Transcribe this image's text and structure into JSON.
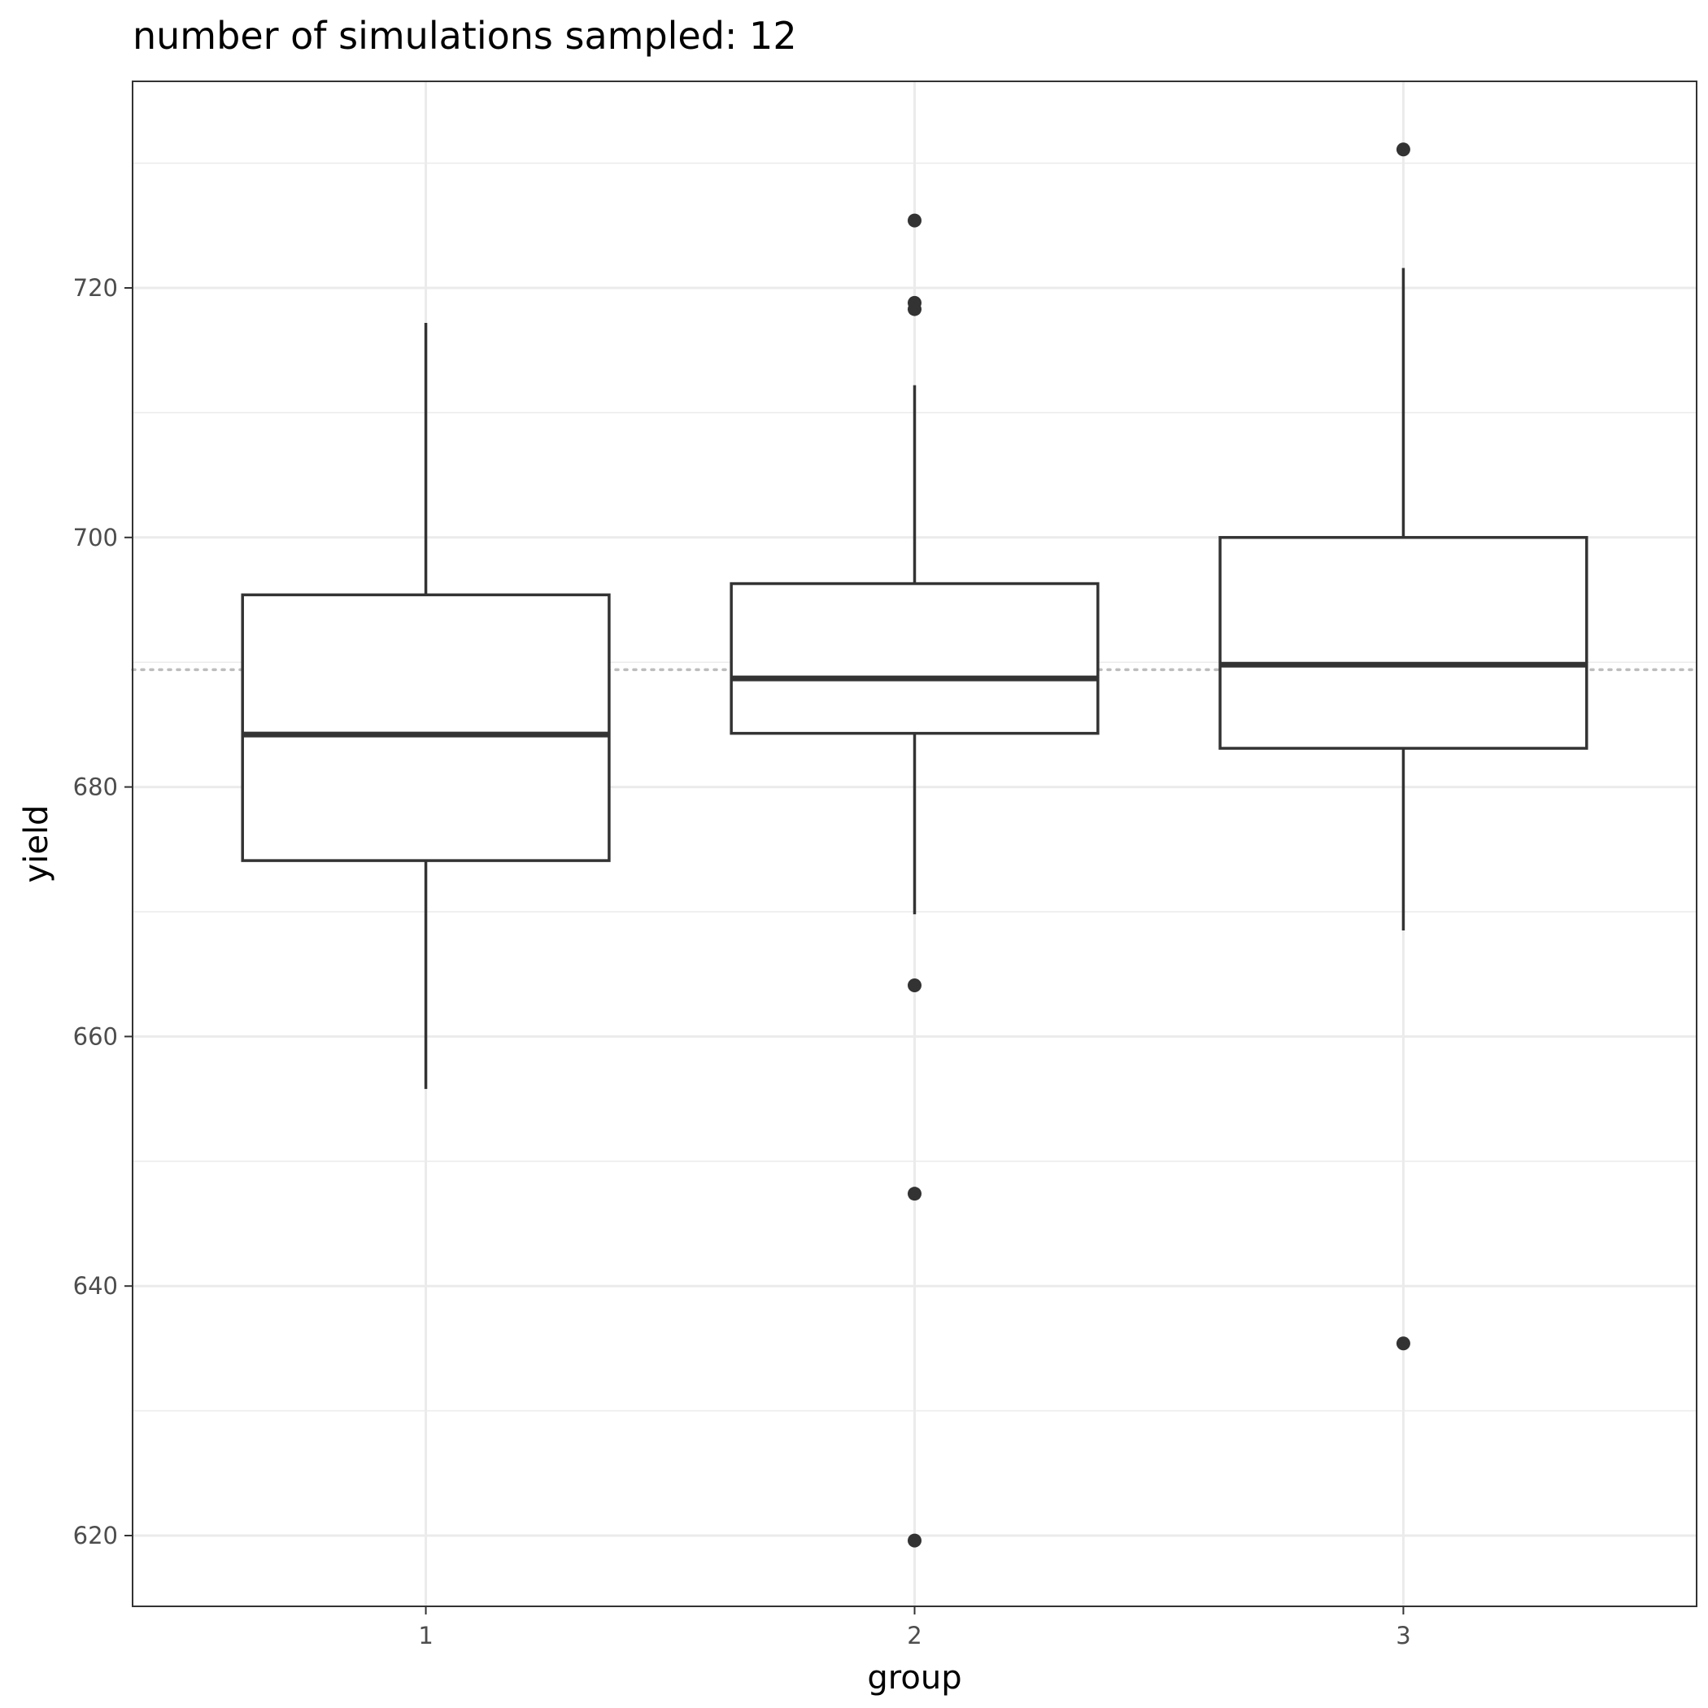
{
  "chart_data": {
    "type": "boxplot",
    "title": "number of simulations sampled: 12",
    "xlabel": "group",
    "ylabel": "yield",
    "categories": [
      "1",
      "2",
      "3"
    ],
    "ylim": [
      614,
      735
    ],
    "yticks": [
      620,
      640,
      660,
      680,
      700,
      720
    ],
    "reference_line": {
      "y": 689.4,
      "style": "dotted",
      "color": "#bdbdbd"
    },
    "grid": true,
    "boxes": [
      {
        "group": "1",
        "whisker_low": 655.8,
        "q1": 674.1,
        "median": 684.2,
        "q3": 695.4,
        "whisker_high": 717.2,
        "outliers": []
      },
      {
        "group": "2",
        "whisker_low": 669.8,
        "q1": 684.3,
        "median": 688.7,
        "q3": 696.3,
        "whisker_high": 712.2,
        "outliers": [
          725.4,
          718.8,
          718.3,
          664.1,
          647.4,
          619.6
        ]
      },
      {
        "group": "3",
        "whisker_low": 668.5,
        "q1": 683.1,
        "median": 689.8,
        "q3": 700.0,
        "whisker_high": 721.6,
        "outliers": [
          731.1,
          635.4
        ]
      }
    ],
    "colors": {
      "box_stroke": "#333333",
      "grid": "#ebebeb",
      "panel_border": "#333333",
      "tick_text": "#4d4d4d"
    }
  }
}
